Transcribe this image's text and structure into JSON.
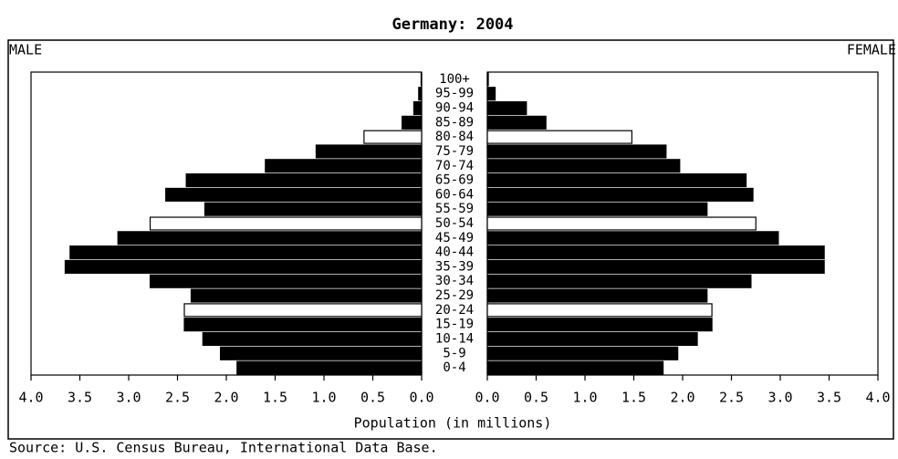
{
  "chart_data": {
    "type": "pyramid",
    "title": "Germany: 2004",
    "x_label": "Population (in millions)",
    "source": "Source: U.S. Census Bureau, International Data Base.",
    "categories": [
      "0-4",
      "5-9",
      "10-14",
      "15-19",
      "20-24",
      "25-29",
      "30-34",
      "35-39",
      "40-44",
      "45-49",
      "50-54",
      "55-59",
      "60-64",
      "65-69",
      "70-74",
      "75-79",
      "80-84",
      "85-89",
      "90-94",
      "95-99",
      "100+"
    ],
    "series": [
      {
        "name": "MALE",
        "side": "left",
        "values": [
          1.89,
          2.06,
          2.24,
          2.43,
          2.43,
          2.36,
          2.78,
          3.65,
          3.6,
          3.11,
          2.78,
          2.22,
          2.62,
          2.41,
          1.6,
          1.08,
          0.59,
          0.2,
          0.08,
          0.03,
          0.005
        ],
        "colors": [
          "#000000",
          "#000000",
          "#000000",
          "#000000",
          "#ffffff",
          "#000000",
          "#000000",
          "#000000",
          "#000000",
          "#000000",
          "#ffffff",
          "#000000",
          "#000000",
          "#000000",
          "#000000",
          "#000000",
          "#ffffff",
          "#000000",
          "#000000",
          "#000000",
          "#000000"
        ]
      },
      {
        "name": "FEMALE",
        "side": "right",
        "values": [
          1.8,
          1.95,
          2.15,
          2.3,
          2.3,
          2.25,
          2.7,
          3.45,
          3.45,
          2.98,
          2.75,
          2.25,
          2.72,
          2.65,
          1.97,
          1.83,
          1.48,
          0.6,
          0.4,
          0.08,
          0.01
        ],
        "colors": [
          "#000000",
          "#000000",
          "#000000",
          "#000000",
          "#ffffff",
          "#000000",
          "#000000",
          "#000000",
          "#000000",
          "#000000",
          "#ffffff",
          "#000000",
          "#000000",
          "#000000",
          "#000000",
          "#000000",
          "#ffffff",
          "#000000",
          "#000000",
          "#000000",
          "#000000"
        ]
      }
    ],
    "xlim": [
      0,
      4
    ],
    "xticks": [
      {
        "value": 0,
        "label": "0.0"
      },
      {
        "value": 0.5,
        "label": "0.5"
      },
      {
        "value": 1,
        "label": "1.0"
      },
      {
        "value": 1.5,
        "label": "1.5"
      },
      {
        "value": 2,
        "label": "2.0"
      },
      {
        "value": 2.5,
        "label": "2.5"
      },
      {
        "value": 3,
        "label": "3.0"
      },
      {
        "value": 3.5,
        "label": "3.5"
      },
      {
        "value": 4,
        "label": "4.0"
      }
    ]
  }
}
